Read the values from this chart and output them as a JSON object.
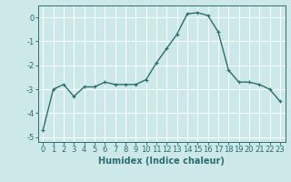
{
  "x": [
    0,
    1,
    2,
    3,
    4,
    5,
    6,
    7,
    8,
    9,
    10,
    11,
    12,
    13,
    14,
    15,
    16,
    17,
    18,
    19,
    20,
    21,
    22,
    23
  ],
  "y": [
    -4.7,
    -3.0,
    -2.8,
    -3.3,
    -2.9,
    -2.9,
    -2.7,
    -2.8,
    -2.8,
    -2.8,
    -2.6,
    -1.9,
    -1.3,
    -0.7,
    0.15,
    0.2,
    0.08,
    -0.6,
    -2.2,
    -2.7,
    -2.7,
    -2.8,
    -3.0,
    -3.5
  ],
  "line_color": "#2d6e6e",
  "marker": "+",
  "marker_size": 3,
  "bg_color": "#cce8e8",
  "grid_color": "#ffffff",
  "xlabel": "Humidex (Indice chaleur)",
  "ylim": [
    -5.2,
    0.5
  ],
  "xlim": [
    -0.5,
    23.5
  ],
  "yticks": [
    0,
    -1,
    -2,
    -3,
    -4,
    -5
  ],
  "xticks": [
    0,
    1,
    2,
    3,
    4,
    5,
    6,
    7,
    8,
    9,
    10,
    11,
    12,
    13,
    14,
    15,
    16,
    17,
    18,
    19,
    20,
    21,
    22,
    23
  ],
  "tick_color": "#2d6e6e",
  "label_fontsize": 7,
  "tick_fontsize": 6,
  "linewidth": 1.0,
  "markeredgewidth": 0.8
}
